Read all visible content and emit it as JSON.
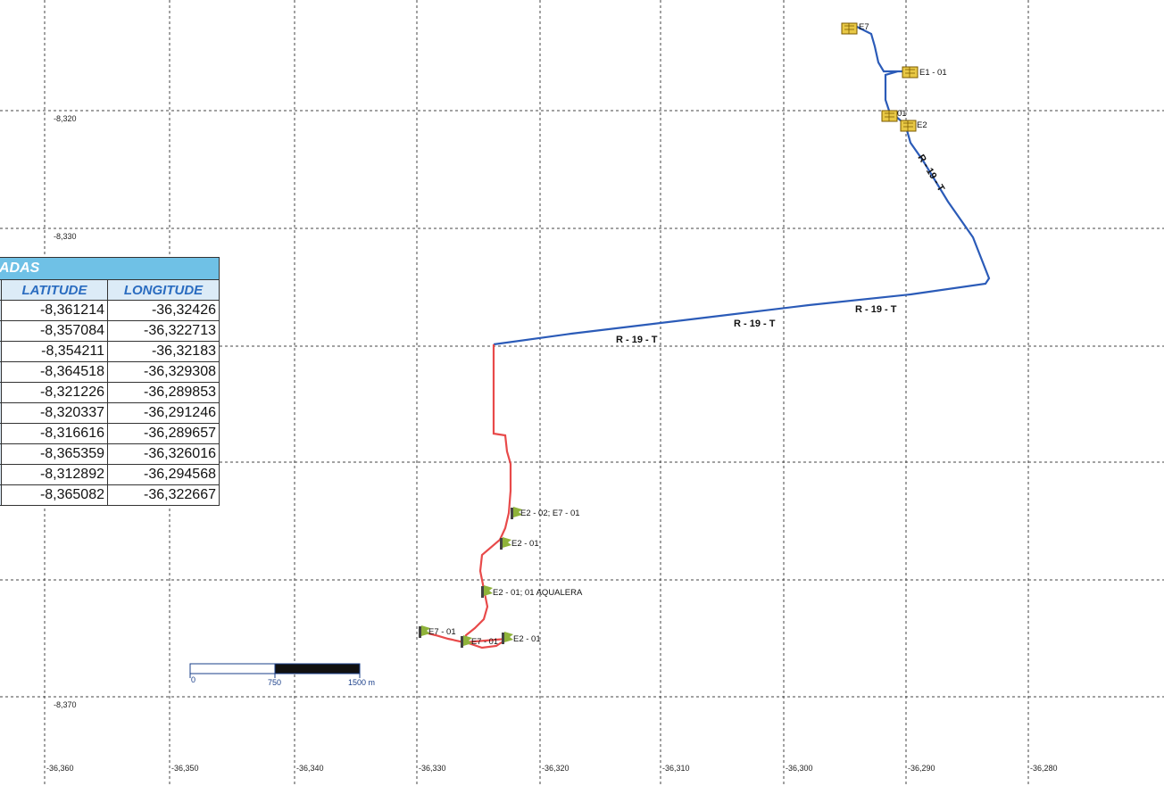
{
  "grid": {
    "lat_labels": [
      "-8,320",
      "-8,330",
      "-8,370"
    ],
    "lon_labels": [
      "-36,360",
      "-36,350",
      "-36,340",
      "-36,330",
      "-36,320",
      "-36,310",
      "-36,300",
      "-36,290",
      "-36,280"
    ]
  },
  "table": {
    "title": "ADAS",
    "headers": {
      "latitude": "LATITUDE",
      "longitude": "LONGITUDE"
    },
    "rows": [
      {
        "lat": "-8,361214",
        "lon": "-36,32426"
      },
      {
        "lat": "-8,357084",
        "lon": "-36,322713"
      },
      {
        "lat": "-8,354211",
        "lon": "-36,32183"
      },
      {
        "lat": "-8,364518",
        "lon": "-36,329308"
      },
      {
        "lat": "-8,321226",
        "lon": "-36,289853"
      },
      {
        "lat": "-8,320337",
        "lon": "-36,291246"
      },
      {
        "lat": "-8,316616",
        "lon": "-36,289657"
      },
      {
        "lat": "-8,365359",
        "lon": "-36,326016"
      },
      {
        "lat": "-8,312892",
        "lon": "-36,294568"
      },
      {
        "lat": "-8,365082",
        "lon": "-36,322667"
      }
    ]
  },
  "routes": {
    "blue_label": "R - 19 - T",
    "blue_color": "#2b5bb8",
    "red_color": "#e84a4a"
  },
  "markers": {
    "e7": "E7",
    "e1_01": "E1 - 01",
    "e2_top": "E2",
    "e2_01_top": "01",
    "e2_02_e7_01": "E2 - 02; E7 - 01",
    "e2_01_mid": "E2 - 01",
    "e2_01_aqualera": "E2 - 01; 01 AQUALERA",
    "e7_01_left": "E7 - 01",
    "e7_01_center": "E7 - 01",
    "e2_01_bottom": "E2 - 01"
  },
  "scale_bar": {
    "start": "0",
    "mid": "750",
    "end": "1500 m"
  }
}
